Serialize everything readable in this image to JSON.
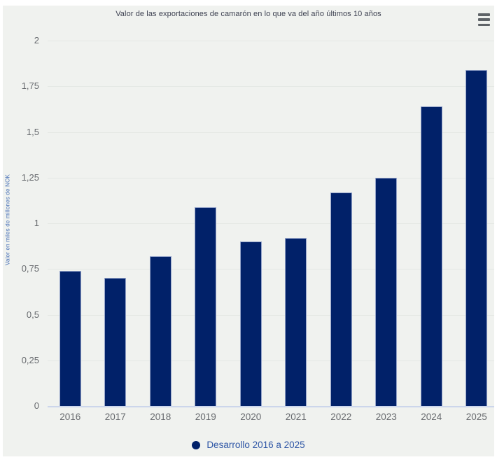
{
  "chart_data": {
    "type": "bar",
    "title": "Valor de las exportaciones de camarón en lo que va del año últimos 10 años",
    "categories": [
      "2016",
      "2017",
      "2018",
      "2019",
      "2020",
      "2021",
      "2022",
      "2023",
      "2024",
      "2025"
    ],
    "values": [
      0.74,
      0.7,
      0.82,
      1.09,
      0.9,
      0.92,
      1.17,
      1.25,
      1.64,
      1.84
    ],
    "series": [
      {
        "name": "Desarrollo 2016 a 2025",
        "values": [
          0.74,
          0.7,
          0.82,
          1.09,
          0.9,
          0.92,
          1.17,
          1.25,
          1.64,
          1.84
        ]
      }
    ],
    "xlabel": "",
    "ylabel": "Valor en miles de millones de NOK",
    "ylim": [
      0,
      2
    ],
    "ytick_step": 0.25,
    "ytick_labels": [
      "0",
      "0,25",
      "0,5",
      "0,75",
      "1",
      "1,25",
      "1,5",
      "1,75",
      "2"
    ],
    "decimal_separator": ",",
    "grid": true,
    "legend": {
      "label": "Desarrollo 2016 a 2025",
      "position": "bottom"
    },
    "colors": {
      "page": "#ffffff",
      "bg": "#f0f2ef",
      "bar": "#012169",
      "bar_border": "#94a3c9",
      "grid": "#e4e8e4",
      "axis": "#ccd6eb",
      "tick": "#66696d",
      "title": "#3e4252",
      "ylabel": "#4a72b8",
      "legend": "#2d55a5",
      "menu": "#5f6468"
    }
  },
  "menu": {
    "icon": "hamburger-menu-icon",
    "tooltip": "Chart context menu"
  }
}
